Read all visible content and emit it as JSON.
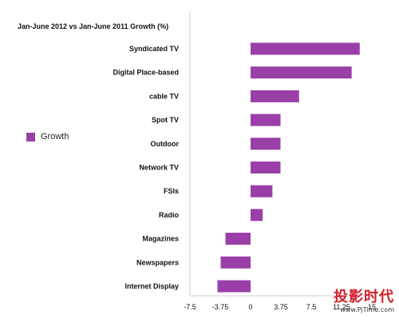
{
  "chart_data": {
    "type": "bar",
    "orientation": "horizontal",
    "title": "Jan-June 2012 vs Jan-June 2011 Growth  (%)",
    "categories": [
      "Syndicated TV",
      "Digital Place-based",
      "cable TV",
      "Spot TV",
      "Outdoor",
      "Network TV",
      "FSIs",
      "Radio",
      "Magazines",
      "Newspapers",
      "Internet Display"
    ],
    "series": [
      {
        "name": "Growth",
        "values": [
          13.5,
          12.5,
          6.0,
          3.7,
          3.7,
          3.7,
          2.7,
          1.5,
          -3.1,
          -3.7,
          -4.1
        ]
      }
    ],
    "xticks": [
      "-7.5",
      "-3.75",
      "0",
      "3.75",
      "7.5",
      "11.25",
      "15"
    ],
    "xlim": [
      -7.5,
      15
    ],
    "grid": false,
    "legend_position": "left",
    "bar_color": "#9a3fa8"
  },
  "watermark": {
    "cn": "投影时代",
    "en": "www.PjTime.com"
  }
}
